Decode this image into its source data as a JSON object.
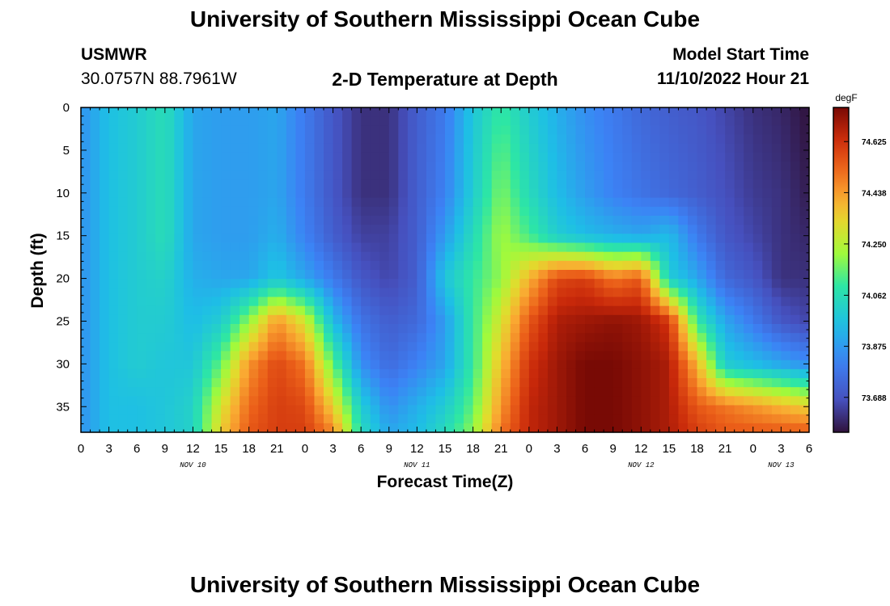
{
  "header": {
    "title": "University of Southern Mississippi Ocean Cube",
    "station": "USMWR",
    "coords": "30.0757N  88.7961W",
    "plot_title": "2-D Temperature at Depth",
    "model_label": "Model Start Time",
    "model_time": "11/10/2022 Hour 21"
  },
  "footer": {
    "title": "University of Southern Mississippi Ocean Cube"
  },
  "chart_data": {
    "type": "heatmap",
    "xlabel": "Forecast Time(Z)",
    "ylabel": "Depth (ft)",
    "x_hours_range": [
      0,
      78
    ],
    "x_tick_labels": [
      "0",
      "3",
      "6",
      "9",
      "12",
      "15",
      "18",
      "21",
      "0",
      "3",
      "6",
      "9",
      "12",
      "15",
      "18",
      "21",
      "0",
      "3",
      "6",
      "9",
      "12",
      "15",
      "18",
      "21",
      "0",
      "3",
      "6"
    ],
    "day_labels": [
      {
        "label": "NOV 10",
        "hour": 12
      },
      {
        "label": "NOV 11",
        "hour": 36
      },
      {
        "label": "NOV 12",
        "hour": 60
      },
      {
        "label": "NOV 13",
        "hour": 75
      }
    ],
    "y_range": [
      0,
      38
    ],
    "y_ticks": [
      0,
      5,
      10,
      15,
      20,
      25,
      30,
      35
    ],
    "colorbar": {
      "unit": "degF",
      "vmin": 73.56,
      "vmax": 74.75,
      "ticks": [
        74.625,
        74.438,
        74.25,
        74.062,
        73.875,
        73.688
      ],
      "tick_labels": [
        "74.625",
        "74.438",
        "74.250",
        "74.062",
        "73.875",
        "73.688"
      ]
    },
    "depth_levels": [
      0,
      10,
      15,
      20,
      25,
      30,
      35,
      38
    ],
    "grid_hours": [
      0,
      3,
      6,
      9,
      12,
      15,
      18,
      21,
      24,
      27,
      30,
      33,
      36,
      39,
      42,
      45,
      48,
      51,
      54,
      57,
      60,
      63,
      66,
      69,
      72,
      75,
      78
    ],
    "values": [
      [
        73.86,
        73.86,
        73.86,
        73.86,
        73.86,
        73.86,
        73.86,
        73.86
      ],
      [
        73.96,
        73.96,
        73.96,
        73.96,
        73.96,
        73.96,
        73.96,
        73.96
      ],
      [
        74.0,
        74.0,
        74.0,
        74.0,
        74.0,
        74.0,
        73.96,
        73.96
      ],
      [
        74.06,
        74.06,
        74.06,
        74.02,
        74.0,
        73.98,
        73.98,
        73.98
      ],
      [
        73.9,
        73.9,
        73.9,
        73.92,
        73.95,
        73.98,
        74.02,
        74.02
      ],
      [
        73.88,
        73.88,
        73.88,
        73.9,
        74.0,
        74.15,
        74.3,
        74.35
      ],
      [
        73.88,
        73.88,
        73.88,
        73.9,
        74.2,
        74.45,
        74.52,
        74.55
      ],
      [
        73.9,
        73.9,
        73.92,
        73.98,
        74.45,
        74.58,
        74.6,
        74.6
      ],
      [
        73.8,
        73.8,
        73.82,
        73.9,
        74.3,
        74.5,
        74.58,
        74.6
      ],
      [
        73.7,
        73.7,
        73.72,
        73.8,
        73.95,
        74.15,
        74.35,
        74.48
      ],
      [
        73.62,
        73.62,
        73.65,
        73.7,
        73.78,
        73.85,
        74.0,
        74.05
      ],
      [
        73.62,
        73.62,
        73.65,
        73.66,
        73.72,
        73.76,
        73.85,
        73.9
      ],
      [
        73.72,
        73.72,
        73.72,
        73.72,
        73.75,
        73.82,
        73.92,
        73.95
      ],
      [
        73.8,
        73.82,
        73.88,
        73.98,
        73.88,
        73.9,
        74.0,
        74.05
      ],
      [
        73.98,
        74.0,
        74.05,
        74.1,
        74.1,
        74.1,
        74.15,
        74.2
      ],
      [
        74.1,
        74.18,
        74.22,
        74.2,
        74.3,
        74.38,
        74.45,
        74.5
      ],
      [
        74.0,
        74.05,
        74.12,
        74.4,
        74.55,
        74.62,
        74.65,
        74.65
      ],
      [
        73.92,
        73.95,
        74.0,
        74.58,
        74.68,
        74.7,
        74.7,
        74.7
      ],
      [
        73.85,
        73.88,
        73.95,
        74.6,
        74.7,
        74.75,
        74.75,
        74.75
      ],
      [
        73.8,
        73.82,
        73.92,
        74.5,
        74.72,
        74.75,
        74.75,
        74.75
      ],
      [
        73.75,
        73.78,
        73.9,
        74.55,
        74.7,
        74.72,
        74.72,
        74.72
      ],
      [
        73.72,
        73.75,
        73.95,
        74.0,
        74.62,
        74.68,
        74.68,
        74.68
      ],
      [
        73.7,
        73.72,
        73.8,
        73.9,
        74.1,
        74.4,
        74.55,
        74.6
      ],
      [
        73.66,
        73.68,
        73.7,
        73.75,
        73.9,
        74.0,
        74.5,
        74.55
      ],
      [
        73.62,
        73.64,
        73.66,
        73.7,
        73.8,
        73.95,
        74.45,
        74.55
      ],
      [
        73.6,
        73.62,
        73.62,
        73.62,
        73.7,
        73.9,
        74.4,
        74.55
      ],
      [
        73.56,
        73.58,
        73.6,
        73.62,
        73.66,
        73.85,
        74.35,
        74.55
      ]
    ]
  }
}
